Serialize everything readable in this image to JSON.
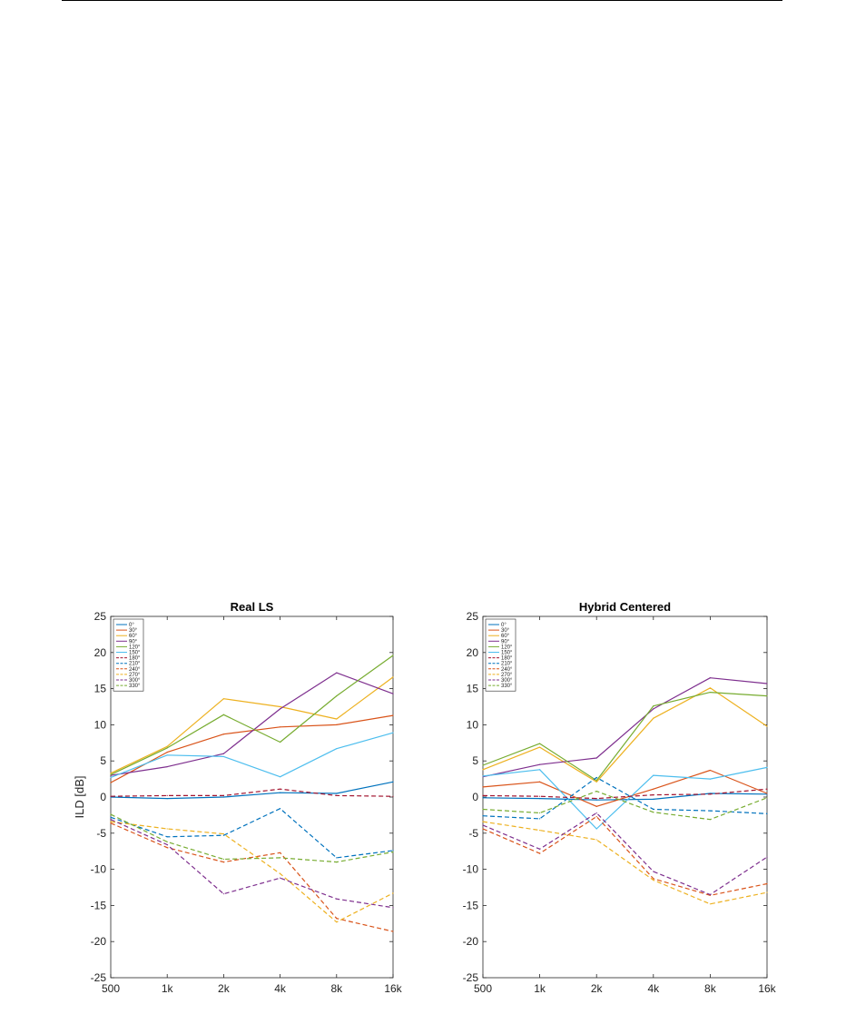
{
  "chart_data": [
    {
      "type": "line",
      "title": "Real LS",
      "ylabel": "ILD [dB]",
      "xlabel": "",
      "categories": [
        "500",
        "1k",
        "2k",
        "4k",
        "8k",
        "16k"
      ],
      "ylim": [
        -25,
        25
      ],
      "yticks": [
        25,
        20,
        15,
        10,
        5,
        0,
        -5,
        -10,
        -15,
        -20,
        -25
      ],
      "grid": false,
      "legend_position": "top-left",
      "series": [
        {
          "name": "0°",
          "color": "#0072BD",
          "dash": false,
          "values": [
            0,
            -0.2,
            0,
            0.6,
            0.5,
            2.1
          ]
        },
        {
          "name": "30°",
          "color": "#D95319",
          "dash": false,
          "values": [
            2,
            6.2,
            8.7,
            9.7,
            10,
            11.3
          ]
        },
        {
          "name": "60°",
          "color": "#EDB120",
          "dash": false,
          "values": [
            3.3,
            7,
            13.6,
            12.5,
            10.8,
            16.6
          ]
        },
        {
          "name": "90°",
          "color": "#7E2F8E",
          "dash": false,
          "values": [
            3,
            4.2,
            6,
            12.2,
            17.2,
            14.3
          ]
        },
        {
          "name": "120°",
          "color": "#77AC30",
          "dash": false,
          "values": [
            3.1,
            6.8,
            11.4,
            7.6,
            14,
            19.6
          ]
        },
        {
          "name": "150°",
          "color": "#4DBEEE",
          "dash": false,
          "values": [
            2.7,
            5.8,
            5.6,
            2.8,
            6.7,
            8.9
          ]
        },
        {
          "name": "180°",
          "color": "#A2142F",
          "dash": true,
          "values": [
            0.1,
            0.2,
            0.2,
            1.1,
            0.2,
            0.1
          ]
        },
        {
          "name": "210°",
          "color": "#0072BD",
          "dash": true,
          "values": [
            -2.8,
            -5.5,
            -5.3,
            -1.6,
            -8.4,
            -7.4
          ]
        },
        {
          "name": "240°",
          "color": "#D95319",
          "dash": true,
          "values": [
            -3.6,
            -7,
            -9,
            -7.7,
            -16.8,
            -18.6
          ]
        },
        {
          "name": "270°",
          "color": "#EDB120",
          "dash": true,
          "values": [
            -3.4,
            -4.4,
            -5.1,
            -10.6,
            -17.3,
            -13.3
          ]
        },
        {
          "name": "300°",
          "color": "#7E2F8E",
          "dash": true,
          "values": [
            -3.1,
            -6.6,
            -13.4,
            -11.2,
            -14.1,
            -15.3
          ]
        },
        {
          "name": "330°",
          "color": "#77AC30",
          "dash": true,
          "values": [
            -2.4,
            -6.2,
            -8.6,
            -8.4,
            -9,
            -7.6
          ]
        }
      ]
    },
    {
      "type": "line",
      "title": "Hybrid Centered",
      "ylabel": "",
      "xlabel": "",
      "categories": [
        "500",
        "1k",
        "2k",
        "4k",
        "8k",
        "16k"
      ],
      "ylim": [
        -25,
        25
      ],
      "yticks": [
        25,
        20,
        15,
        10,
        5,
        0,
        -5,
        -10,
        -15,
        -20,
        -25
      ],
      "grid": false,
      "legend_position": "top-left",
      "series": [
        {
          "name": "0°",
          "color": "#0072BD",
          "dash": false,
          "values": [
            -0.1,
            -0.2,
            -0.4,
            -0.3,
            0.5,
            0.4
          ]
        },
        {
          "name": "30°",
          "color": "#D95319",
          "dash": false,
          "values": [
            1.4,
            2.1,
            -1.3,
            1.1,
            3.7,
            0.5
          ]
        },
        {
          "name": "60°",
          "color": "#EDB120",
          "dash": false,
          "values": [
            3.8,
            6.9,
            2.1,
            10.9,
            15.1,
            9.8
          ]
        },
        {
          "name": "90°",
          "color": "#7E2F8E",
          "dash": false,
          "values": [
            2.8,
            4.5,
            5.4,
            12.2,
            16.5,
            15.7
          ]
        },
        {
          "name": "120°",
          "color": "#77AC30",
          "dash": false,
          "values": [
            4.4,
            7.4,
            2.3,
            12.6,
            14.5,
            14
          ]
        },
        {
          "name": "150°",
          "color": "#4DBEEE",
          "dash": false,
          "values": [
            2.9,
            3.8,
            -4.4,
            3,
            2.5,
            4.1
          ]
        },
        {
          "name": "180°",
          "color": "#A2142F",
          "dash": true,
          "values": [
            0.2,
            0.1,
            -0.2,
            0.3,
            0.4,
            1.1
          ]
        },
        {
          "name": "210°",
          "color": "#0072BD",
          "dash": true,
          "values": [
            -2.6,
            -3,
            2.7,
            -1.7,
            -1.9,
            -2.3
          ]
        },
        {
          "name": "240°",
          "color": "#D95319",
          "dash": true,
          "values": [
            -4.4,
            -7.8,
            -2.7,
            -11.3,
            -13.6,
            -12
          ]
        },
        {
          "name": "270°",
          "color": "#EDB120",
          "dash": true,
          "values": [
            -3.4,
            -4.6,
            -5.9,
            -11.5,
            -14.8,
            -13.2
          ]
        },
        {
          "name": "300°",
          "color": "#7E2F8E",
          "dash": true,
          "values": [
            -3.9,
            -7.2,
            -2.2,
            -10.3,
            -13.5,
            -8.3
          ]
        },
        {
          "name": "330°",
          "color": "#77AC30",
          "dash": true,
          "values": [
            -1.7,
            -2.2,
            0.8,
            -2.1,
            -3.1,
            -0.1
          ]
        }
      ]
    }
  ]
}
